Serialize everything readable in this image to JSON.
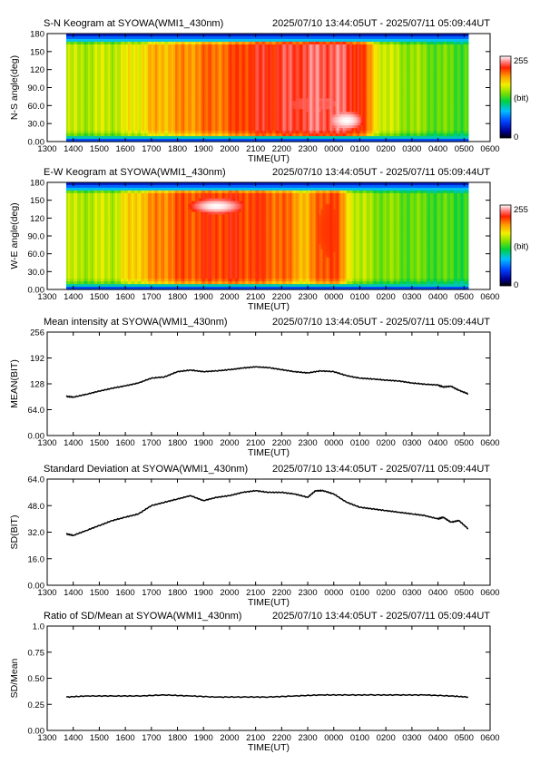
{
  "chart_data": [
    {
      "type": "heatmap",
      "title": "S-N Keogram at SYOWA(WMI1_430nm)",
      "time_range": "2025/07/10 13:44:05UT - 2025/07/11 05:09:44UT",
      "xlabel": "TIME(UT)",
      "ylabel": "N-S angle(deg)",
      "x_ticks": [
        "1300",
        "1400",
        "1500",
        "1600",
        "1700",
        "1800",
        "1900",
        "2000",
        "2100",
        "2200",
        "2300",
        "0000",
        "0100",
        "0200",
        "0300",
        "0400",
        "0500",
        "0600"
      ],
      "y_ticks": [
        "0.00",
        "30.0",
        "60.0",
        "90.0",
        "120",
        "150",
        "180"
      ],
      "xlim_hours": [
        13,
        30
      ],
      "ylim": [
        0,
        180
      ],
      "data_start_hour": 13.73,
      "data_end_hour": 29.16,
      "colorbar": {
        "min_label": "0",
        "max_label": "255",
        "unit": "(bit)"
      },
      "profile": [
        [
          13.73,
          150
        ],
        [
          15.5,
          155
        ],
        [
          16.3,
          165
        ],
        [
          17.0,
          180
        ],
        [
          18.0,
          190
        ],
        [
          19.0,
          200
        ],
        [
          20.0,
          205
        ],
        [
          20.5,
          215
        ],
        [
          21.0,
          220
        ],
        [
          22.0,
          225
        ],
        [
          23.0,
          230
        ],
        [
          23.5,
          235
        ],
        [
          24.5,
          230
        ],
        [
          25.0,
          220
        ],
        [
          25.5,
          180
        ],
        [
          26.0,
          155
        ],
        [
          27.0,
          145
        ],
        [
          28.0,
          135
        ],
        [
          29.16,
          130
        ]
      ],
      "bright_spot": {
        "hour": 24.5,
        "angle": 35,
        "width_hours": 1.3,
        "height_deg": 30,
        "peak": 255
      },
      "bright_band": {
        "hour": 23.2,
        "angle": 62,
        "width_hours": 1.8,
        "height_deg": 22,
        "peak": 230
      }
    },
    {
      "type": "heatmap",
      "title": "E-W Keogram at SYOWA(WMI1_430nm)",
      "time_range": "2025/07/10 13:44:05UT - 2025/07/11 05:09:44UT",
      "xlabel": "TIME(UT)",
      "ylabel": "W-E angle(deg)",
      "x_ticks": [
        "1300",
        "1400",
        "1500",
        "1600",
        "1700",
        "1800",
        "1900",
        "2000",
        "2100",
        "2200",
        "2300",
        "0000",
        "0100",
        "0200",
        "0300",
        "0400",
        "0500",
        "0600"
      ],
      "y_ticks": [
        "0.00",
        "30.0",
        "60.0",
        "90.0",
        "120",
        "150",
        "180"
      ],
      "xlim_hours": [
        13,
        30
      ],
      "ylim": [
        0,
        180
      ],
      "data_start_hour": 13.73,
      "data_end_hour": 29.16,
      "colorbar": {
        "min_label": "0",
        "max_label": "255",
        "unit": "(bit)"
      },
      "profile": [
        [
          13.73,
          150
        ],
        [
          15.5,
          155
        ],
        [
          16.5,
          180
        ],
        [
          17.5,
          200
        ],
        [
          18.5,
          210
        ],
        [
          19.5,
          215
        ],
        [
          20.5,
          215
        ],
        [
          21.5,
          210
        ],
        [
          22.5,
          195
        ],
        [
          23.0,
          180
        ],
        [
          23.5,
          210
        ],
        [
          24.0,
          215
        ],
        [
          24.5,
          175
        ],
        [
          25.0,
          150
        ],
        [
          26.0,
          140
        ],
        [
          27.0,
          135
        ],
        [
          28.0,
          130
        ],
        [
          29.16,
          125
        ]
      ],
      "bright_spot": {
        "hour": 19.5,
        "angle": 140,
        "width_hours": 2.2,
        "height_deg": 28,
        "peak": 255
      },
      "bright_band": {
        "hour": 23.8,
        "angle": 100,
        "width_hours": 0.8,
        "height_deg": 90,
        "peak": 215
      }
    },
    {
      "type": "line",
      "title": "Mean intensity at SYOWA(WMI1_430nm)",
      "time_range": "2025/07/10 13:44:05UT - 2025/07/11 05:09:44UT",
      "xlabel": "TIME(UT)",
      "ylabel": "MEAN(BIT)",
      "x_ticks": [
        "1300",
        "1400",
        "1500",
        "1600",
        "1700",
        "1800",
        "1900",
        "2000",
        "2100",
        "2200",
        "2300",
        "0000",
        "0100",
        "0200",
        "0300",
        "0400",
        "0500",
        "0600"
      ],
      "y_ticks": [
        "0.00",
        "64.0",
        "128",
        "192",
        "256"
      ],
      "xlim_hours": [
        13,
        30
      ],
      "ylim": [
        0,
        256
      ],
      "series": [
        {
          "x": [
            13.73,
            14.0,
            14.5,
            15.0,
            15.5,
            16.0,
            16.5,
            17.0,
            17.5,
            18.0,
            18.5,
            19.0,
            19.5,
            20.0,
            20.5,
            21.0,
            21.5,
            22.0,
            22.5,
            23.0,
            23.5,
            24.0,
            24.5,
            25.0,
            25.5,
            26.0,
            26.5,
            27.0,
            27.5,
            28.0,
            28.2,
            28.5,
            28.8,
            29.16
          ],
          "y": [
            97,
            95,
            102,
            110,
            117,
            123,
            130,
            142,
            145,
            158,
            162,
            158,
            160,
            163,
            167,
            170,
            168,
            163,
            158,
            155,
            160,
            158,
            148,
            142,
            140,
            137,
            135,
            130,
            127,
            125,
            120,
            122,
            112,
            103
          ]
        }
      ]
    },
    {
      "type": "line",
      "title": "Standard Deviation at SYOWA(WMI1_430nm)",
      "time_range": "2025/07/10 13:44:05UT - 2025/07/11 05:09:44UT",
      "xlabel": "TIME(UT)",
      "ylabel": "SD(BIT)",
      "x_ticks": [
        "1300",
        "1400",
        "1500",
        "1600",
        "1700",
        "1800",
        "1900",
        "2000",
        "2100",
        "2200",
        "2300",
        "0000",
        "0100",
        "0200",
        "0300",
        "0400",
        "0500",
        "0600"
      ],
      "y_ticks": [
        "0.00",
        "16.0",
        "32.0",
        "48.0",
        "64.0"
      ],
      "xlim_hours": [
        13,
        30
      ],
      "ylim": [
        0,
        64
      ],
      "series": [
        {
          "x": [
            13.73,
            14.0,
            14.5,
            15.0,
            15.5,
            16.0,
            16.5,
            17.0,
            17.5,
            18.0,
            18.5,
            19.0,
            19.5,
            20.0,
            20.5,
            21.0,
            21.5,
            22.0,
            22.5,
            23.0,
            23.3,
            23.6,
            24.0,
            24.5,
            25.0,
            25.5,
            26.0,
            26.5,
            27.0,
            27.5,
            28.0,
            28.2,
            28.5,
            28.8,
            29.16
          ],
          "y": [
            31,
            30,
            33,
            36,
            39,
            41,
            43,
            48,
            50,
            52,
            54,
            51,
            53,
            54,
            56,
            57,
            56,
            56,
            55,
            53,
            57,
            57,
            55,
            50,
            47,
            46,
            45,
            44,
            43,
            42,
            40,
            41,
            38,
            39,
            34
          ]
        }
      ]
    },
    {
      "type": "line",
      "title": "Ratio of SD/Mean at SYOWA(WMI1_430nm)",
      "time_range": "2025/07/10 13:44:05UT - 2025/07/11 05:09:44UT",
      "xlabel": "TIME(UT)",
      "ylabel": "SD/Mean",
      "x_ticks": [
        "1300",
        "1400",
        "1500",
        "1600",
        "1700",
        "1800",
        "1900",
        "2000",
        "2100",
        "2200",
        "2300",
        "0000",
        "0100",
        "0200",
        "0300",
        "0400",
        "0500",
        "0600"
      ],
      "y_ticks": [
        "0.00",
        "0.25",
        "0.50",
        "0.75",
        "1.0"
      ],
      "xlim_hours": [
        13,
        30
      ],
      "ylim": [
        0,
        1.0
      ],
      "series": [
        {
          "x": [
            13.73,
            14.5,
            15.5,
            16.5,
            17.5,
            18.5,
            19.5,
            20.5,
            21.5,
            22.5,
            23.5,
            24.5,
            25.5,
            26.5,
            27.5,
            28.5,
            29.16
          ],
          "y": [
            0.32,
            0.33,
            0.33,
            0.33,
            0.34,
            0.33,
            0.32,
            0.32,
            0.32,
            0.33,
            0.34,
            0.34,
            0.34,
            0.34,
            0.34,
            0.33,
            0.32
          ]
        }
      ]
    }
  ]
}
